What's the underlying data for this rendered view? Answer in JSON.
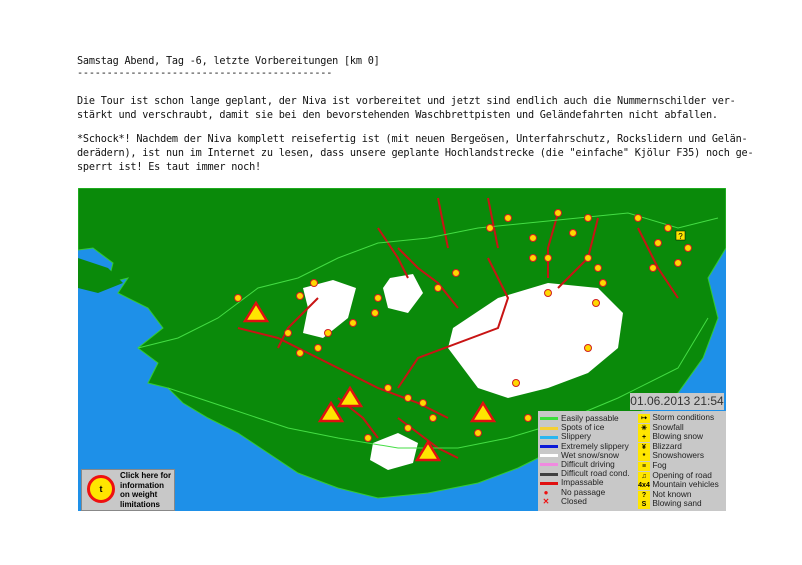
{
  "heading": "Samstag Abend, Tag -6, letzte Vorbereitungen [km 0]",
  "divider": "-------------------------------------------",
  "paragraphs": [
    [
      "Die Tour ist schon lange geplant, der Niva ist vorbereitet und jetzt sind endlich auch die Nummernschilder ver-",
      "stärkt und verschraubt, damit sie bei den bevorstehenden Waschbrettpisten und Geländefahrten nicht abfallen."
    ],
    [
      "*Schock*! Nachdem der Niva komplett reisefertig ist (mit neuen Bergeösen, Unterfahrschutz, Rockslidern und Gelän-",
      "derädern), ist nun im Internet zu lesen, dass unsere geplante Hochlandstrecke (die \"einfache\" Kjölur F35) noch ge-",
      "sperrt ist! Es taut immer noch!"
    ]
  ],
  "map": {
    "timestamp": "01.06.2013 21:54",
    "colors": {
      "sea": "#1e90e8",
      "land": "#0a8a0a",
      "glacier": "#ffffff",
      "road_impassable": "#c81414",
      "road_passable": "#44dd44"
    },
    "weight_info": {
      "text": "Click here for information on weight limitations",
      "icon": "axle-weight-sign-icon"
    },
    "legend_lines": [
      {
        "label": "Easily passable",
        "color": "#3ddc3d"
      },
      {
        "label": "Spots of ice",
        "color": "#f5d033"
      },
      {
        "label": "Slippery",
        "color": "#29b6f0"
      },
      {
        "label": "Extremely slippery",
        "color": "#0a1ad8"
      },
      {
        "label": "Wet snow/snow",
        "color": "#ffffff"
      },
      {
        "label": "Difficult driving",
        "color": "#f08ae0"
      },
      {
        "label": "Difficult road cond.",
        "color": "#404040"
      },
      {
        "label": "Impassable",
        "color": "#e01010"
      }
    ],
    "legend_points": [
      {
        "label": "No passage",
        "icon": "yellow-circle-icon"
      },
      {
        "label": "Closed",
        "icon": "red-x-icon"
      }
    ],
    "legend_symbols": [
      {
        "label": "Storm conditions",
        "icon": "storm-icon"
      },
      {
        "label": "Snowfall",
        "icon": "snowflake-icon"
      },
      {
        "label": "Blowing snow",
        "icon": "blowing-snow-icon"
      },
      {
        "label": "Blizzard",
        "icon": "blizzard-icon"
      },
      {
        "label": "Snowshowers",
        "icon": "snowshower-icon"
      },
      {
        "label": "Fog",
        "icon": "fog-icon"
      },
      {
        "label": "Opening of road",
        "icon": "road-opening-icon"
      },
      {
        "label": "Mountain vehicles",
        "icon": "4x4-icon",
        "glyph": "4x4"
      },
      {
        "label": "Not known",
        "icon": "question-icon",
        "glyph": "?"
      },
      {
        "label": "Blowing sand",
        "icon": "blowing-sand-icon",
        "glyph": "S"
      }
    ]
  }
}
